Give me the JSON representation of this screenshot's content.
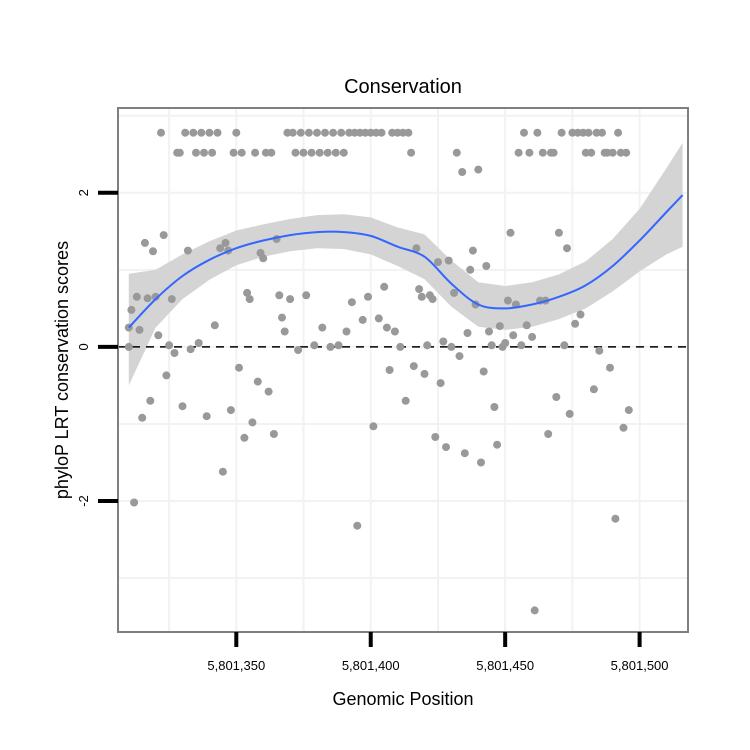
{
  "chart_data": {
    "type": "scatter",
    "title": "Conservation",
    "xlabel": "Genomic Position",
    "ylabel": "phyloP LRT conservation scores",
    "xlim": [
      5801306,
      5801518
    ],
    "ylim": [
      -3.7,
      3.1
    ],
    "grid": true,
    "x_ticks": [
      {
        "value": 5801350,
        "label": "5,801,350"
      },
      {
        "value": 5801400,
        "label": "5,801,400"
      },
      {
        "value": 5801450,
        "label": "5,801,450"
      },
      {
        "value": 5801500,
        "label": "5,801,500"
      }
    ],
    "y_ticks": [
      {
        "value": 2,
        "label": "2"
      },
      {
        "value": 0,
        "label": "0"
      },
      {
        "value": -2,
        "label": "-2"
      }
    ],
    "reference_line": {
      "y": 0,
      "style": "dashed"
    },
    "colors": {
      "points": "#999999",
      "smooth": "#3366ff",
      "band": "#d4d4d4",
      "panel_border": "#7f7f7f",
      "grid": "#f2f2f2"
    },
    "points": [
      [
        5801310,
        0.0
      ],
      [
        5801310,
        0.25
      ],
      [
        5801311,
        0.48
      ],
      [
        5801312,
        -2.02
      ],
      [
        5801313,
        0.65
      ],
      [
        5801314,
        0.22
      ],
      [
        5801315,
        -0.92
      ],
      [
        5801316,
        1.35
      ],
      [
        5801317,
        0.63
      ],
      [
        5801318,
        -0.7
      ],
      [
        5801319,
        1.24
      ],
      [
        5801320,
        0.65
      ],
      [
        5801321,
        0.15
      ],
      [
        5801322,
        2.78
      ],
      [
        5801323,
        1.45
      ],
      [
        5801324,
        -0.37
      ],
      [
        5801325,
        0.02
      ],
      [
        5801326,
        0.62
      ],
      [
        5801327,
        -0.08
      ],
      [
        5801328,
        2.52
      ],
      [
        5801329,
        2.52
      ],
      [
        5801330,
        -0.77
      ],
      [
        5801331,
        2.78
      ],
      [
        5801332,
        1.25
      ],
      [
        5801333,
        -0.03
      ],
      [
        5801334,
        2.78
      ],
      [
        5801335,
        2.52
      ],
      [
        5801336,
        0.05
      ],
      [
        5801337,
        2.78
      ],
      [
        5801338,
        2.52
      ],
      [
        5801339,
        -0.9
      ],
      [
        5801340,
        2.78
      ],
      [
        5801341,
        2.52
      ],
      [
        5801342,
        0.28
      ],
      [
        5801343,
        2.78
      ],
      [
        5801344,
        1.28
      ],
      [
        5801345,
        -1.62
      ],
      [
        5801346,
        1.35
      ],
      [
        5801347,
        1.25
      ],
      [
        5801348,
        -0.82
      ],
      [
        5801349,
        2.52
      ],
      [
        5801350,
        2.78
      ],
      [
        5801351,
        -0.27
      ],
      [
        5801352,
        2.52
      ],
      [
        5801353,
        -1.18
      ],
      [
        5801354,
        0.7
      ],
      [
        5801355,
        0.62
      ],
      [
        5801356,
        -0.98
      ],
      [
        5801357,
        2.52
      ],
      [
        5801358,
        -0.45
      ],
      [
        5801359,
        1.22
      ],
      [
        5801360,
        1.15
      ],
      [
        5801361,
        2.52
      ],
      [
        5801362,
        -0.58
      ],
      [
        5801363,
        2.52
      ],
      [
        5801364,
        -1.13
      ],
      [
        5801365,
        1.4
      ],
      [
        5801366,
        0.67
      ],
      [
        5801367,
        0.38
      ],
      [
        5801368,
        0.2
      ],
      [
        5801369,
        2.78
      ],
      [
        5801370,
        0.62
      ],
      [
        5801371,
        2.78
      ],
      [
        5801372,
        2.52
      ],
      [
        5801373,
        -0.04
      ],
      [
        5801374,
        2.78
      ],
      [
        5801375,
        2.52
      ],
      [
        5801376,
        0.67
      ],
      [
        5801377,
        2.78
      ],
      [
        5801378,
        2.52
      ],
      [
        5801379,
        0.02
      ],
      [
        5801380,
        2.78
      ],
      [
        5801381,
        2.52
      ],
      [
        5801382,
        0.25
      ],
      [
        5801383,
        2.78
      ],
      [
        5801384,
        2.52
      ],
      [
        5801385,
        0.0
      ],
      [
        5801386,
        2.78
      ],
      [
        5801387,
        2.52
      ],
      [
        5801388,
        0.02
      ],
      [
        5801389,
        2.78
      ],
      [
        5801390,
        2.52
      ],
      [
        5801391,
        0.2
      ],
      [
        5801392,
        2.78
      ],
      [
        5801393,
        0.58
      ],
      [
        5801394,
        2.78
      ],
      [
        5801395,
        -2.32
      ],
      [
        5801396,
        2.78
      ],
      [
        5801397,
        0.35
      ],
      [
        5801398,
        2.78
      ],
      [
        5801399,
        0.65
      ],
      [
        5801400,
        2.78
      ],
      [
        5801401,
        -1.03
      ],
      [
        5801402,
        2.78
      ],
      [
        5801403,
        0.37
      ],
      [
        5801404,
        2.78
      ],
      [
        5801405,
        0.78
      ],
      [
        5801406,
        0.25
      ],
      [
        5801407,
        -0.3
      ],
      [
        5801408,
        2.78
      ],
      [
        5801409,
        0.2
      ],
      [
        5801410,
        2.78
      ],
      [
        5801411,
        0.0
      ],
      [
        5801412,
        2.78
      ],
      [
        5801413,
        -0.7
      ],
      [
        5801414,
        2.78
      ],
      [
        5801415,
        2.52
      ],
      [
        5801416,
        -0.25
      ],
      [
        5801417,
        1.28
      ],
      [
        5801418,
        0.75
      ],
      [
        5801419,
        0.65
      ],
      [
        5801420,
        -0.35
      ],
      [
        5801421,
        0.02
      ],
      [
        5801422,
        0.67
      ],
      [
        5801423,
        0.62
      ],
      [
        5801424,
        -1.17
      ],
      [
        5801425,
        1.1
      ],
      [
        5801426,
        -0.47
      ],
      [
        5801427,
        0.07
      ],
      [
        5801428,
        -1.3
      ],
      [
        5801429,
        1.12
      ],
      [
        5801430,
        0.0
      ],
      [
        5801431,
        0.7
      ],
      [
        5801432,
        2.52
      ],
      [
        5801433,
        -0.12
      ],
      [
        5801434,
        2.27
      ],
      [
        5801435,
        -1.38
      ],
      [
        5801436,
        0.18
      ],
      [
        5801437,
        1.0
      ],
      [
        5801438,
        1.25
      ],
      [
        5801439,
        0.55
      ],
      [
        5801440,
        2.3
      ],
      [
        5801441,
        -1.5
      ],
      [
        5801442,
        -0.32
      ],
      [
        5801443,
        1.05
      ],
      [
        5801444,
        0.2
      ],
      [
        5801445,
        0.02
      ],
      [
        5801446,
        -0.78
      ],
      [
        5801447,
        -1.27
      ],
      [
        5801448,
        0.27
      ],
      [
        5801449,
        0.0
      ],
      [
        5801450,
        0.05
      ],
      [
        5801451,
        0.6
      ],
      [
        5801452,
        1.48
      ],
      [
        5801453,
        0.15
      ],
      [
        5801454,
        0.55
      ],
      [
        5801455,
        2.52
      ],
      [
        5801456,
        0.02
      ],
      [
        5801457,
        2.78
      ],
      [
        5801458,
        0.28
      ],
      [
        5801459,
        2.52
      ],
      [
        5801460,
        0.13
      ],
      [
        5801461,
        -3.42
      ],
      [
        5801462,
        2.78
      ],
      [
        5801463,
        0.6
      ],
      [
        5801464,
        2.52
      ],
      [
        5801465,
        0.6
      ],
      [
        5801466,
        -1.13
      ],
      [
        5801467,
        2.52
      ],
      [
        5801468,
        2.52
      ],
      [
        5801469,
        -0.65
      ],
      [
        5801470,
        1.48
      ],
      [
        5801471,
        2.78
      ],
      [
        5801472,
        0.02
      ],
      [
        5801473,
        1.28
      ],
      [
        5801474,
        -0.87
      ],
      [
        5801475,
        2.78
      ],
      [
        5801476,
        0.3
      ],
      [
        5801477,
        2.78
      ],
      [
        5801478,
        0.42
      ],
      [
        5801479,
        2.78
      ],
      [
        5801480,
        2.52
      ],
      [
        5801481,
        2.78
      ],
      [
        5801482,
        2.52
      ],
      [
        5801483,
        -0.55
      ],
      [
        5801484,
        2.78
      ],
      [
        5801485,
        -0.05
      ],
      [
        5801486,
        2.78
      ],
      [
        5801487,
        2.52
      ],
      [
        5801488,
        2.52
      ],
      [
        5801489,
        -0.27
      ],
      [
        5801490,
        2.52
      ],
      [
        5801491,
        -2.23
      ],
      [
        5801492,
        2.78
      ],
      [
        5801493,
        2.52
      ],
      [
        5801494,
        -1.05
      ],
      [
        5801495,
        2.52
      ],
      [
        5801496,
        -0.82
      ]
    ],
    "smooth": {
      "x": [
        5801310,
        5801320,
        5801330,
        5801340,
        5801350,
        5801360,
        5801370,
        5801380,
        5801390,
        5801400,
        5801410,
        5801420,
        5801430,
        5801440,
        5801450,
        5801460,
        5801470,
        5801480,
        5801490,
        5801500,
        5801510,
        5801516
      ],
      "y": [
        0.25,
        0.62,
        0.92,
        1.13,
        1.28,
        1.38,
        1.45,
        1.49,
        1.49,
        1.44,
        1.3,
        1.17,
        0.82,
        0.55,
        0.5,
        0.55,
        0.65,
        0.8,
        1.05,
        1.38,
        1.75,
        1.97
      ],
      "lower": [
        -0.5,
        0.25,
        0.62,
        0.87,
        1.06,
        1.17,
        1.24,
        1.28,
        1.27,
        1.2,
        1.05,
        0.88,
        0.52,
        0.26,
        0.22,
        0.26,
        0.36,
        0.5,
        0.72,
        0.98,
        1.2,
        1.3
      ],
      "upper": [
        0.95,
        1.0,
        1.2,
        1.37,
        1.51,
        1.59,
        1.66,
        1.71,
        1.72,
        1.68,
        1.55,
        1.46,
        1.12,
        0.84,
        0.79,
        0.84,
        0.94,
        1.11,
        1.4,
        1.79,
        2.32,
        2.65
      ]
    }
  }
}
